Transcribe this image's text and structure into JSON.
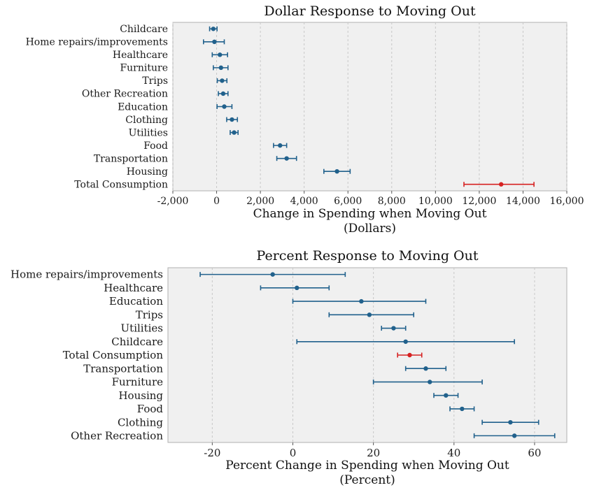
{
  "style": {
    "plot_bg": "#f0f0f0",
    "grid_color": "#c8c8c8",
    "border_color": "#b0b0b0",
    "tick_color": "#555555",
    "point_color": "#21618c",
    "highlight_color": "#d62222",
    "text_color": "#1a1a1a"
  },
  "chart_data": [
    {
      "type": "scatter",
      "subtype": "dot-with-error-bars",
      "title": "Dollar Response to Moving Out",
      "xlabel": "Change in Spending when Moving Out",
      "xlabel_sub": "(Dollars)",
      "xlim": [
        -2000,
        16000
      ],
      "grid": true,
      "legend": "none",
      "xticks": [
        -2000,
        0,
        2000,
        4000,
        6000,
        8000,
        10000,
        12000,
        14000,
        16000
      ],
      "xtick_labels": [
        "-2,000",
        "0",
        "2,000",
        "4,000",
        "6,000",
        "8,000",
        "10,000",
        "12,000",
        "14,000",
        "16,000"
      ],
      "highlight_category": "Total Consumption",
      "categories": [
        "Childcare",
        "Home repairs/improvements",
        "Healthcare",
        "Furniture",
        "Trips",
        "Other Recreation",
        "Education",
        "Clothing",
        "Utilities",
        "Food",
        "Transportation",
        "Housing",
        "Total Consumption"
      ],
      "values": [
        -150,
        -100,
        150,
        200,
        250,
        300,
        350,
        700,
        800,
        2900,
        3200,
        5500,
        13000
      ],
      "ci_low": [
        -320,
        -600,
        -200,
        -150,
        30,
        80,
        20,
        460,
        620,
        2600,
        2750,
        4900,
        11300
      ],
      "ci_high": [
        20,
        350,
        500,
        520,
        470,
        520,
        700,
        950,
        980,
        3200,
        3650,
        6100,
        14500
      ]
    },
    {
      "type": "scatter",
      "subtype": "dot-with-error-bars",
      "title": "Percent Response to Moving Out",
      "xlabel": "Percent Change in Spending when Moving Out",
      "xlabel_sub": "(Percent)",
      "xlim": [
        -31,
        68
      ],
      "grid": true,
      "legend": "none",
      "xticks": [
        -20,
        0,
        20,
        40,
        60
      ],
      "xtick_labels": [
        "-20",
        "0",
        "20",
        "40",
        "60"
      ],
      "highlight_category": "Total Consumption",
      "categories": [
        "Home repairs/improvements",
        "Healthcare",
        "Education",
        "Trips",
        "Utilities",
        "Childcare",
        "Total Consumption",
        "Transportation",
        "Furniture",
        "Housing",
        "Food",
        "Clothing",
        "Other Recreation"
      ],
      "values": [
        -5,
        1,
        17,
        19,
        25,
        28,
        29,
        33,
        34,
        38,
        42,
        54,
        55
      ],
      "ci_low": [
        -23,
        -8,
        0,
        9,
        22,
        1,
        26,
        28,
        20,
        35,
        39,
        47,
        45
      ],
      "ci_high": [
        13,
        9,
        33,
        30,
        28,
        55,
        32,
        38,
        47,
        41,
        45,
        61,
        65
      ]
    }
  ]
}
